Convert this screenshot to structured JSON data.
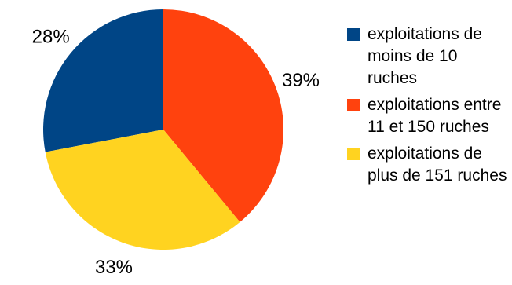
{
  "chart_data": {
    "type": "pie",
    "title": "",
    "categories": [
      "exploitations de moins de 10 ruches",
      "exploitations entre 11 et 150 ruches",
      "exploitations de plus de 151 ruches"
    ],
    "values": [
      28,
      39,
      33
    ],
    "labels": [
      "28%",
      "39%",
      "33%"
    ],
    "colors": [
      "#004586",
      "#ff420e",
      "#ffd320"
    ],
    "legend_placement": "right"
  }
}
